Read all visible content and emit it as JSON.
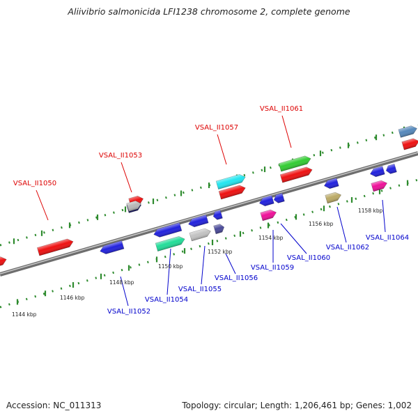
{
  "title": "Aliivibrio salmonicida LFI1238 chromosome 2, complete genome",
  "footer": {
    "accession": "Accession: NC_011313",
    "summary": "Topology: circular; Length: 1,206,461 bp; Genes: 1,002"
  },
  "colors": {
    "backbone": "#8a8a8a",
    "dotted_track": "#2e8b2e",
    "forward_label": "#dd0000",
    "reverse_label": "#0000cc"
  },
  "tick_labels": [
    "1144 kbp",
    "1146 kbp",
    "1148 kbp",
    "1150 kbp",
    "1152 kbp",
    "1154 kbp",
    "1156 kbp",
    "1158 kbp"
  ],
  "gene_labels": {
    "forward": [
      "VSAL_II1050",
      "VSAL_II1053",
      "VSAL_II1057",
      "VSAL_II1061"
    ],
    "reverse": [
      "VSAL_II1052",
      "VSAL_II1054",
      "VSAL_II1055",
      "VSAL_II1056",
      "VSAL_II1059",
      "VSAL_II1060",
      "VSAL_II1062",
      "VSAL_II1064"
    ]
  }
}
